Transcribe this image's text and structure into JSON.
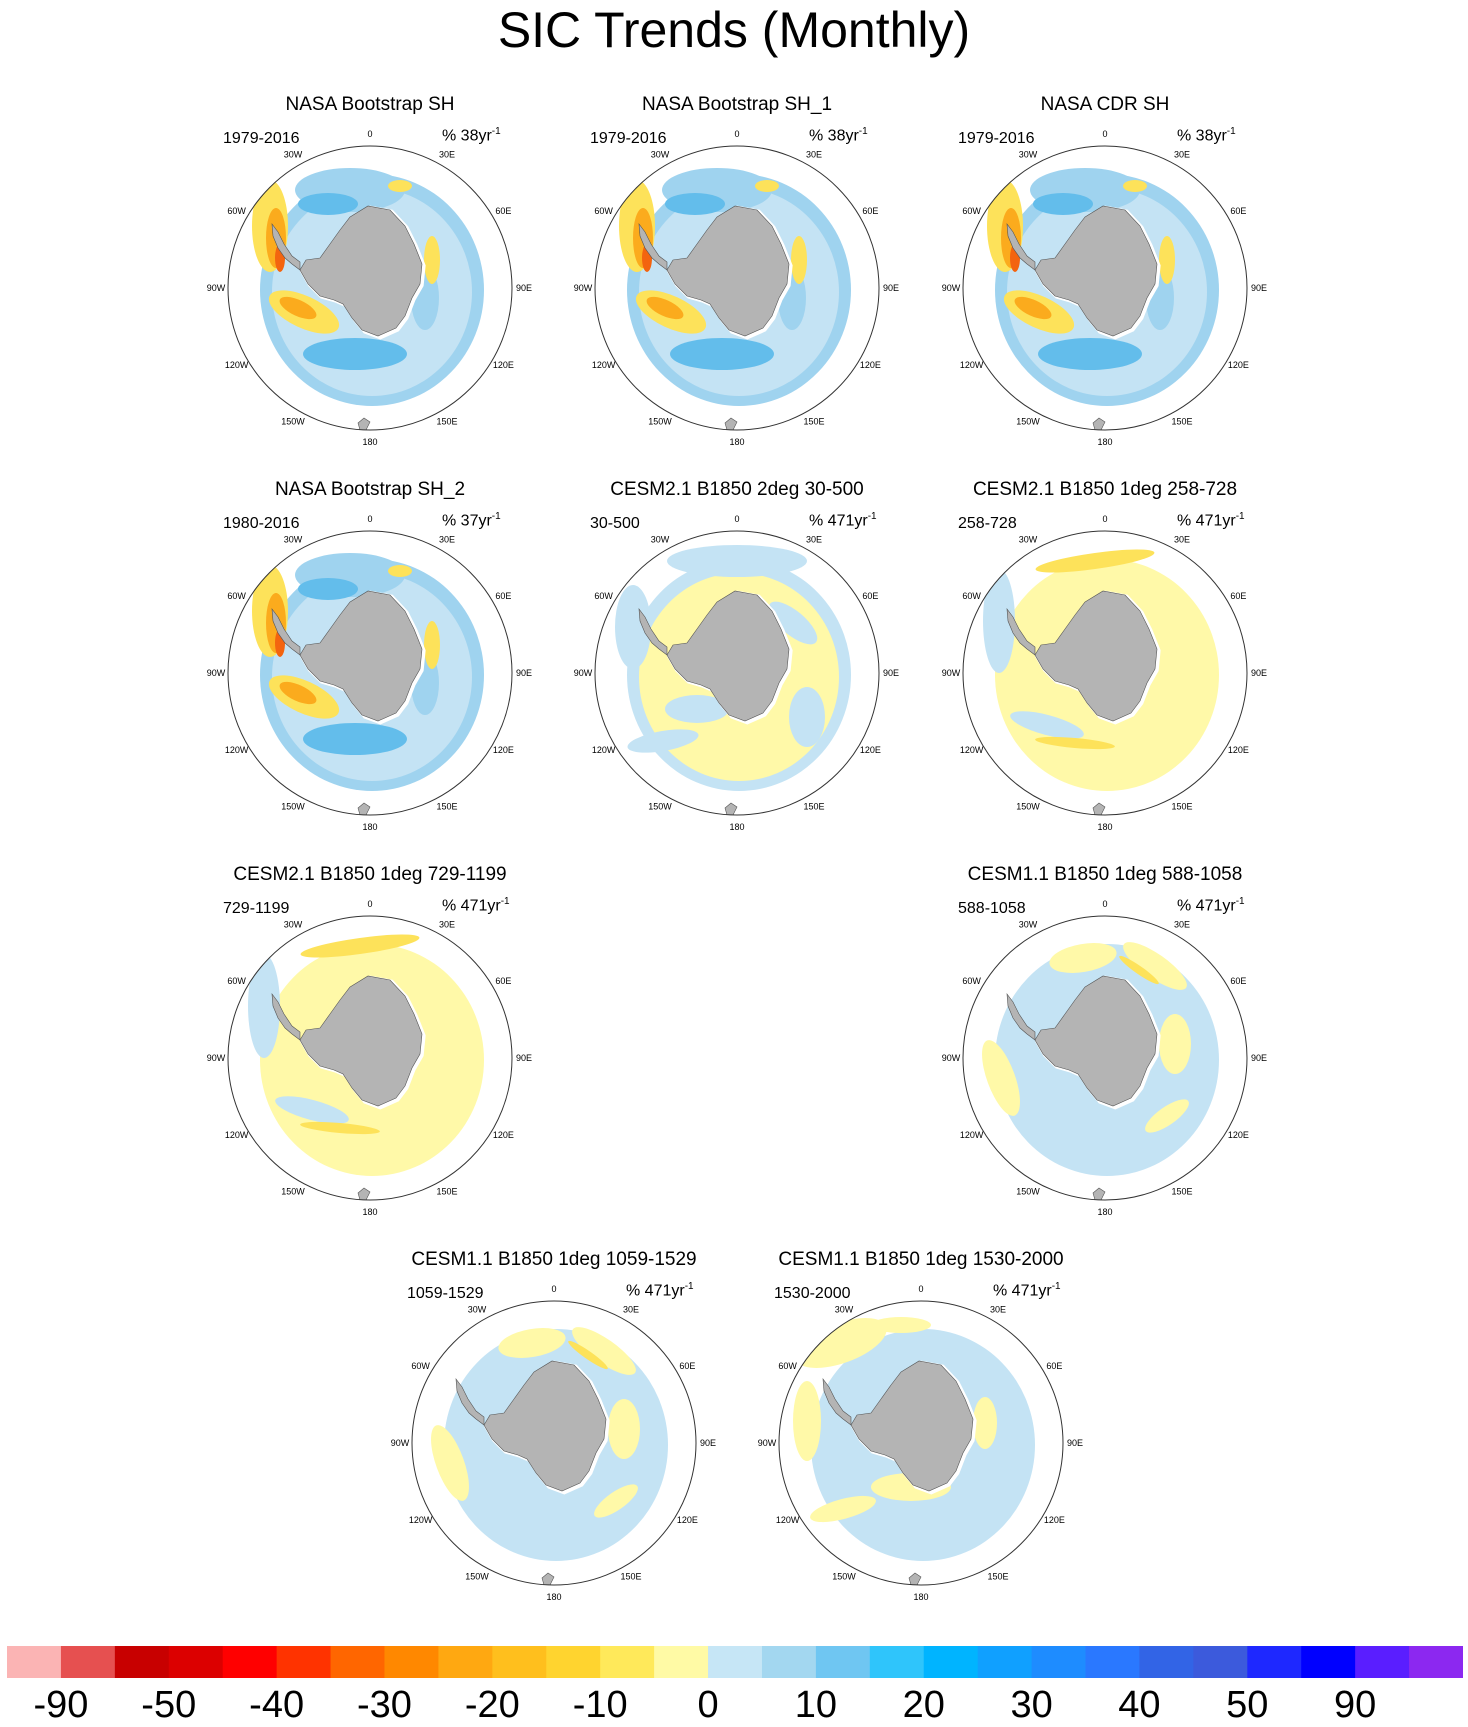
{
  "title": "SIC Trends (Monthly)",
  "colors": {
    "land": "#b4b4b4",
    "pos_pale": "#fff9a8",
    "pos_yellow": "#fde25a",
    "pos_orange": "#fbab1d",
    "pos_deep": "#f3640f",
    "neg_pale": "#c4e3f4",
    "neg_light": "#9fd3ef",
    "neg_mid": "#63bdeb",
    "neg_deep": "#2e9fe6"
  },
  "lon_labels": {
    "top": "0",
    "top_right": "30E",
    "right_upper": "60E",
    "right": "90E",
    "right_lower": "120E",
    "bottom_right": "150E",
    "bottom": "180",
    "bottom_left": "150W",
    "left_lower": "120W",
    "left": "90W",
    "left_upper": "60W",
    "top_left": "30W"
  },
  "panels": [
    {
      "title": "NASA Bootstrap SH",
      "period": "1979-2016",
      "units": "% 38yr",
      "units_sup": "-1",
      "style": "obs"
    },
    {
      "title": "NASA Bootstrap SH_1",
      "period": "1979-2016",
      "units": "% 38yr",
      "units_sup": "-1",
      "style": "obs"
    },
    {
      "title": "NASA CDR SH",
      "period": "1979-2016",
      "units": "% 38yr",
      "units_sup": "-1",
      "style": "obs"
    },
    {
      "title": "NASA Bootstrap SH_2",
      "period": "1980-2016",
      "units": "% 37yr",
      "units_sup": "-1",
      "style": "obs"
    },
    {
      "title": "CESM2.1 B1850 2deg 30-500",
      "period": "30-500",
      "units": "% 471yr",
      "units_sup": "-1",
      "style": "model_mixed"
    },
    {
      "title": "CESM2.1 B1850 1deg 258-728",
      "period": "258-728",
      "units": "% 471yr",
      "units_sup": "-1",
      "style": "model_yellow"
    },
    {
      "title": "CESM2.1 B1850 1deg 729-1199",
      "period": "729-1199",
      "units": "% 471yr",
      "units_sup": "-1",
      "style": "model_yellow"
    },
    {
      "title": "CESM1.1 B1850 1deg 588-1058",
      "period": "588-1058",
      "units": "% 471yr",
      "units_sup": "-1",
      "style": "model_blue"
    },
    {
      "title": "CESM1.1 B1850 1deg 1059-1529",
      "period": "1059-1529",
      "units": "% 471yr",
      "units_sup": "-1",
      "style": "model_blue"
    },
    {
      "title": "CESM1.1 B1850 1deg 1530-2000",
      "period": "1530-2000",
      "units": "% 471yr",
      "units_sup": "-1",
      "style": "model_blue2"
    }
  ],
  "colorbar": {
    "colors": [
      "#fbb4b4",
      "#e65050",
      "#c80000",
      "#dc0000",
      "#ff0000",
      "#ff3300",
      "#ff6600",
      "#ff8800",
      "#ffa811",
      "#ffbf1d",
      "#ffd42f",
      "#ffe95a",
      "#fffaa5",
      "#c6e6f6",
      "#a3d7f0",
      "#6fc6f2",
      "#2fc5fb",
      "#00b4ff",
      "#10a0ff",
      "#1e8cff",
      "#2a78ff",
      "#3264e6",
      "#3c5adc",
      "#1e28ff",
      "#0000ff",
      "#5a1eff",
      "#8c28f0"
    ],
    "labels": [
      "-90",
      "-50",
      "-40",
      "-30",
      "-20",
      "-10",
      "0",
      "10",
      "20",
      "30",
      "40",
      "50",
      "90"
    ]
  }
}
